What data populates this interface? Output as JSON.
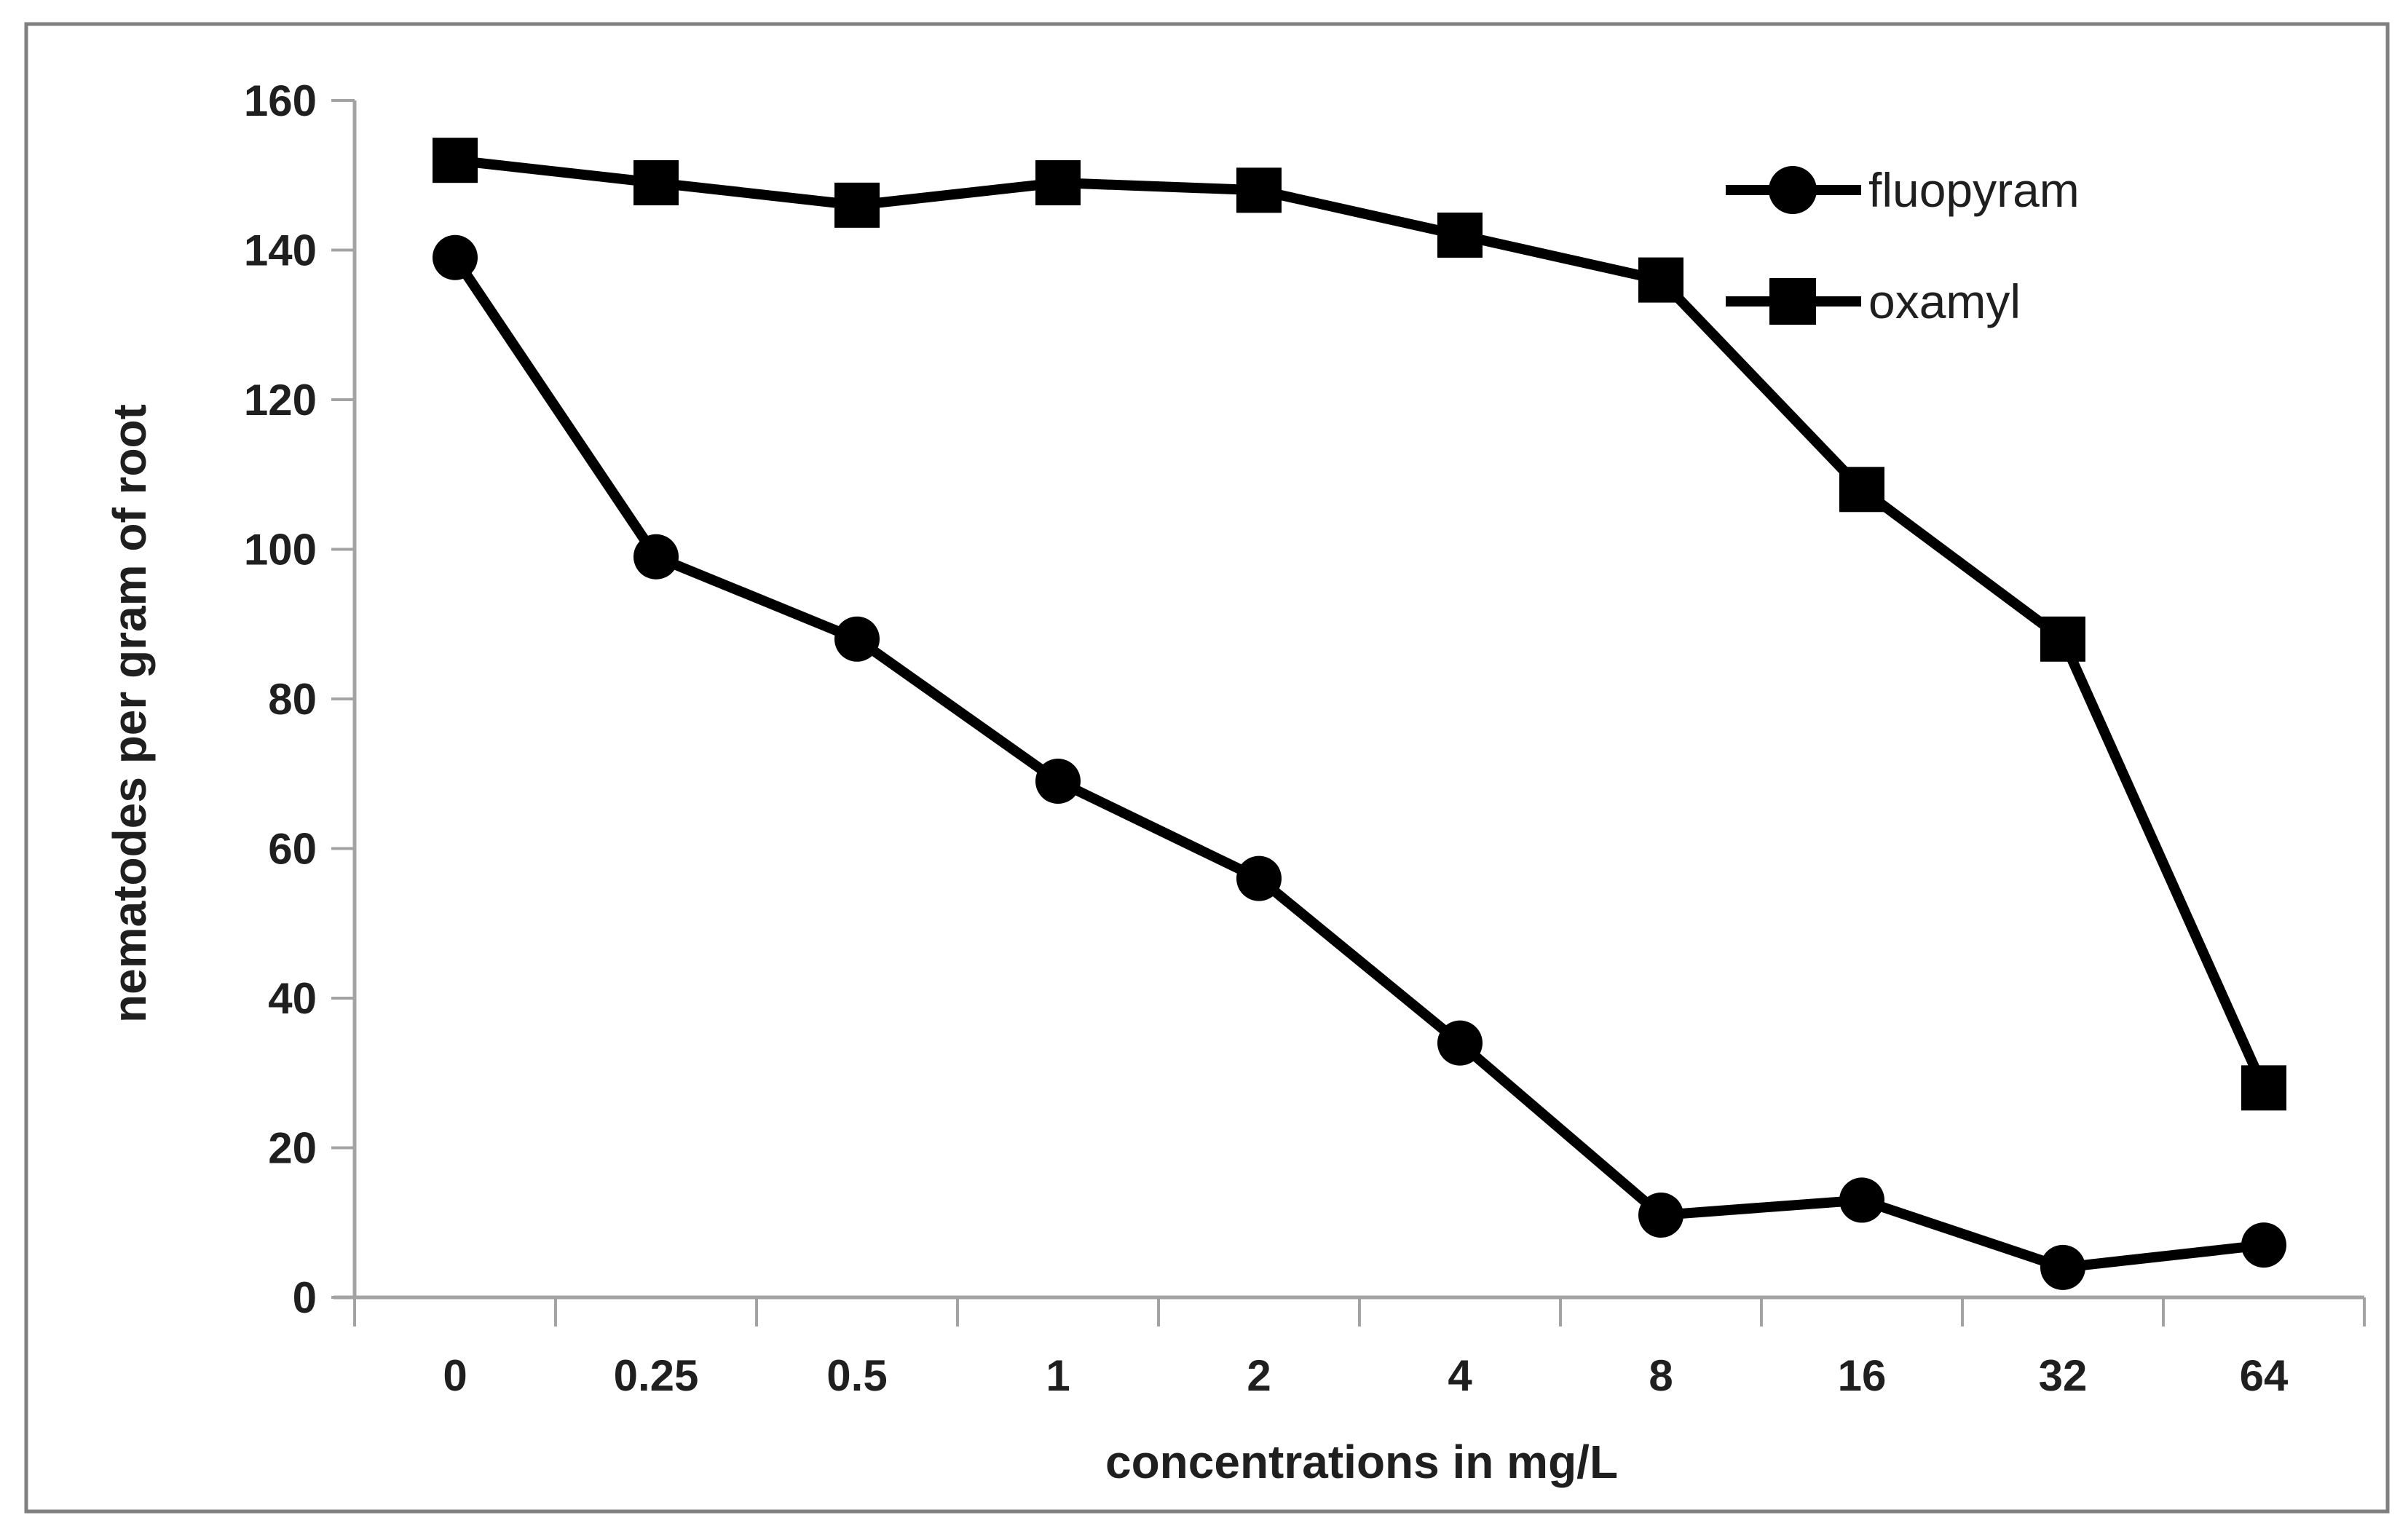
{
  "chart_data": {
    "type": "line",
    "categories": [
      "0",
      "0.25",
      "0.5",
      "1",
      "2",
      "4",
      "8",
      "16",
      "32",
      "64"
    ],
    "series": [
      {
        "name": "fluopyram",
        "marker": "circle",
        "values": [
          139,
          99,
          88,
          69,
          56,
          34,
          11,
          13,
          4,
          7
        ]
      },
      {
        "name": "oxamyl",
        "marker": "square",
        "values": [
          152,
          149,
          146,
          149,
          148,
          142,
          136,
          108,
          88,
          28
        ]
      }
    ],
    "title": "",
    "xlabel": "concentrations in mg/L",
    "ylabel": "nematodes per gram of root",
    "y_ticks": [
      0,
      20,
      40,
      60,
      80,
      100,
      120,
      140,
      160
    ],
    "ylim": [
      0,
      160
    ],
    "grid": false,
    "legend_position": "upper-right",
    "series_color": "#000000",
    "axis_color": "#a3a3a3",
    "border_color": "#7f7f7f",
    "text_color": "#1f1f1f"
  }
}
